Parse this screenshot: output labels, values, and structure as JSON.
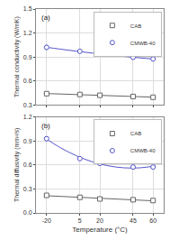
{
  "chart_data": [
    {
      "type": "scatter",
      "ylabel": "Thermal conductivity (W/mK)",
      "annotations": [
        "(a)"
      ],
      "x": [
        -20,
        5,
        20,
        45,
        60
      ],
      "xlim": [
        -28,
        68
      ],
      "xticks": [
        -20,
        5,
        20,
        45,
        60
      ],
      "ylim": [
        0.3,
        1.5
      ],
      "yticks": [
        0.3,
        0.6,
        0.9,
        1.2,
        1.5
      ],
      "tick_labels": "y",
      "grid": true,
      "legend": "upper right",
      "series": [
        {
          "name": "CAB",
          "color": "#666666",
          "marker": "square",
          "values": [
            0.44,
            0.43,
            0.42,
            0.405,
            0.395
          ],
          "yerr": [
            0.012,
            0.012,
            0.012,
            0.012,
            0.012
          ],
          "fit": {
            "x": [
              -22,
              62
            ],
            "values": [
              0.44317,
              0.39512
            ]
          }
        },
        {
          "name": "CMWB-40",
          "color": "#5555cc",
          "marker": "circle",
          "values": [
            1.02,
            0.97,
            0.935,
            0.895,
            0.875
          ],
          "yerr": [
            0.025,
            0.018,
            0.015,
            0.018,
            0.015
          ],
          "fit": {
            "x": [
              -22,
              -10,
              2,
              14,
              26,
              38,
              50,
              62
            ],
            "values": [
              1.02567,
              0.99825,
              0.97264,
              0.94882,
              0.92681,
              0.90661,
              0.88821,
              0.87161
            ]
          }
        }
      ]
    },
    {
      "type": "scatter",
      "xlabel": "Temperature (°C)",
      "ylabel": "Thermal diffusivity (mm²/s)",
      "annotations": [
        "(b)"
      ],
      "x": [
        -20,
        5,
        20,
        45,
        60
      ],
      "xlim": [
        -28,
        68
      ],
      "xticks": [
        -20,
        5,
        20,
        45,
        60
      ],
      "ylim": [
        0.0,
        1.2
      ],
      "yticks": [
        {
          "value": 0.0,
          "label": "0.0"
        },
        0.3,
        0.6,
        0.9,
        1.2
      ],
      "grid": true,
      "legend": "upper right",
      "series": [
        {
          "name": "CAB",
          "color": "#666666",
          "marker": "square",
          "values": [
            0.22,
            0.195,
            0.175,
            0.165,
            0.155
          ],
          "yerr": [
            0.01,
            0.008,
            0.008,
            0.008,
            0.008
          ],
          "fit": {
            "x": [
              -22,
              62
            ],
            "values": [
              0.21716,
              0.15004
            ]
          }
        },
        {
          "name": "CMWB-40",
          "color": "#5555cc",
          "marker": "circle",
          "values": [
            0.93,
            0.68,
            0.62,
            0.575,
            0.575
          ],
          "yerr": [
            0.025,
            0.02,
            0.018,
            0.018,
            0.018
          ],
          "fit": {
            "x": [
              -22,
              -10,
              2,
              14,
              26,
              38,
              50,
              62
            ],
            "values": [
              0.94699,
              0.82008,
              0.71844,
              0.64209,
              0.59103,
              0.56525,
              0.56475,
              0.58954
            ]
          }
        }
      ]
    }
  ]
}
